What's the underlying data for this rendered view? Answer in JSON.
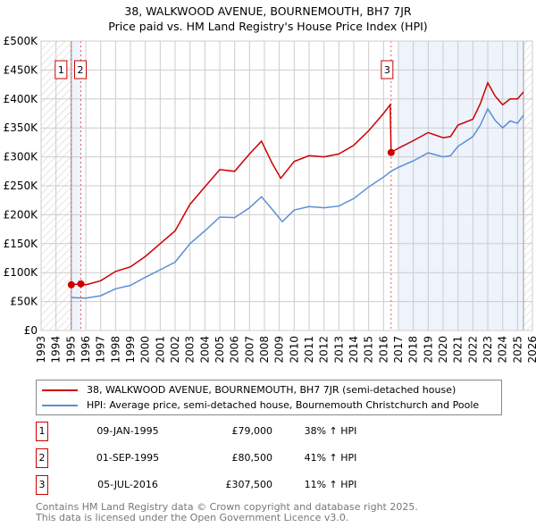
{
  "title_line1": "38, WALKWOOD AVENUE, BOURNEMOUTH, BH7 7JR",
  "title_line2": "Price paid vs. HM Land Registry's House Price Index (HPI)",
  "chart_data": {
    "type": "line",
    "xlim": [
      1993,
      2026
    ],
    "ylim": [
      0,
      500000
    ],
    "x_ticks": [
      "1993",
      "1994",
      "1995",
      "1996",
      "1997",
      "1998",
      "1999",
      "2000",
      "2001",
      "2002",
      "2003",
      "2004",
      "2005",
      "2006",
      "2007",
      "2008",
      "2009",
      "2010",
      "2011",
      "2012",
      "2013",
      "2014",
      "2015",
      "2016",
      "2017",
      "2018",
      "2019",
      "2020",
      "2021",
      "2022",
      "2023",
      "2024",
      "2025",
      "2026"
    ],
    "y_ticks": [
      {
        "v": 0,
        "label": "£0"
      },
      {
        "v": 50000,
        "label": "£50K"
      },
      {
        "v": 100000,
        "label": "£100K"
      },
      {
        "v": 150000,
        "label": "£150K"
      },
      {
        "v": 200000,
        "label": "£200K"
      },
      {
        "v": 250000,
        "label": "£250K"
      },
      {
        "v": 300000,
        "label": "£300K"
      },
      {
        "v": 350000,
        "label": "£350K"
      },
      {
        "v": 400000,
        "label": "£400K"
      },
      {
        "v": 450000,
        "label": "£450K"
      },
      {
        "v": 500000,
        "label": "£500K"
      }
    ],
    "grid": true,
    "series": [
      {
        "name": "38, WALKWOOD AVENUE, BOURNEMOUTH, BH7 7JR (semi-detached house)",
        "color": "#cc0000",
        "x": [
          1995.03,
          1995.67,
          1996,
          1997,
          1998,
          1999,
          2000,
          2001,
          2002,
          2003,
          2004,
          2005,
          2006,
          2007,
          2007.8,
          2008.5,
          2009.1,
          2010,
          2011,
          2012,
          2013,
          2014,
          2015,
          2016,
          2016.45,
          2016.51,
          2017,
          2018,
          2019,
          2020,
          2020.5,
          2021,
          2022,
          2022.5,
          2023,
          2023.5,
          2024,
          2024.5,
          2025,
          2025.4
        ],
        "y": [
          79000,
          80500,
          79000,
          86000,
          102000,
          110000,
          128000,
          150000,
          172000,
          218000,
          248000,
          278000,
          275000,
          305000,
          327000,
          290000,
          263000,
          292000,
          302000,
          300000,
          305000,
          320000,
          345000,
          375000,
          390000,
          307500,
          315000,
          328000,
          342000,
          333000,
          335000,
          355000,
          365000,
          392000,
          428000,
          405000,
          390000,
          400000,
          400000,
          412000
        ]
      },
      {
        "name": "HPI: Average price, semi-detached house, Bournemouth Christchurch and Poole",
        "color": "#5b8fd4",
        "x": [
          1995.03,
          1996,
          1997,
          1998,
          1999,
          2000,
          2001,
          2002,
          2003,
          2004,
          2005,
          2006,
          2007,
          2007.8,
          2008.5,
          2009.2,
          2010,
          2011,
          2012,
          2013,
          2014,
          2015,
          2016,
          2016.5,
          2017,
          2018,
          2019,
          2020,
          2020.5,
          2021,
          2022,
          2022.5,
          2023,
          2023.5,
          2024,
          2024.5,
          2025,
          2025.4
        ],
        "y": [
          57000,
          56000,
          60000,
          72000,
          78000,
          92000,
          105000,
          118000,
          150000,
          172000,
          196000,
          195000,
          212000,
          231000,
          210000,
          188000,
          208000,
          214000,
          212000,
          215000,
          228000,
          248000,
          265000,
          275000,
          282000,
          293000,
          307000,
          300000,
          302000,
          318000,
          335000,
          355000,
          383000,
          363000,
          350000,
          362000,
          358000,
          372000
        ]
      }
    ],
    "sales": [
      {
        "label": "1",
        "x": 1995.03,
        "y": 79000
      },
      {
        "label": "2",
        "x": 1995.67,
        "y": 80500
      },
      {
        "label": "3",
        "x": 2016.51,
        "y": 307500
      }
    ],
    "legend_placement": "below"
  },
  "legend": [
    {
      "label": "38, WALKWOOD AVENUE, BOURNEMOUTH, BH7 7JR (semi-detached house)",
      "color": "#cc0000"
    },
    {
      "label": "HPI: Average price, semi-detached house, Bournemouth Christchurch and Poole",
      "color": "#5b8fd4"
    }
  ],
  "table": [
    {
      "num": "1",
      "date": "09-JAN-1995",
      "price": "£79,000",
      "hpi": "38% ↑ HPI"
    },
    {
      "num": "2",
      "date": "01-SEP-1995",
      "price": "£80,500",
      "hpi": "41% ↑ HPI"
    },
    {
      "num": "3",
      "date": "05-JUL-2016",
      "price": "£307,500",
      "hpi": "11% ↑ HPI"
    }
  ],
  "footer_line1": "Contains HM Land Registry data © Crown copyright and database right 2025.",
  "footer_line2": "This data is licensed under the Open Government Licence v3.0."
}
